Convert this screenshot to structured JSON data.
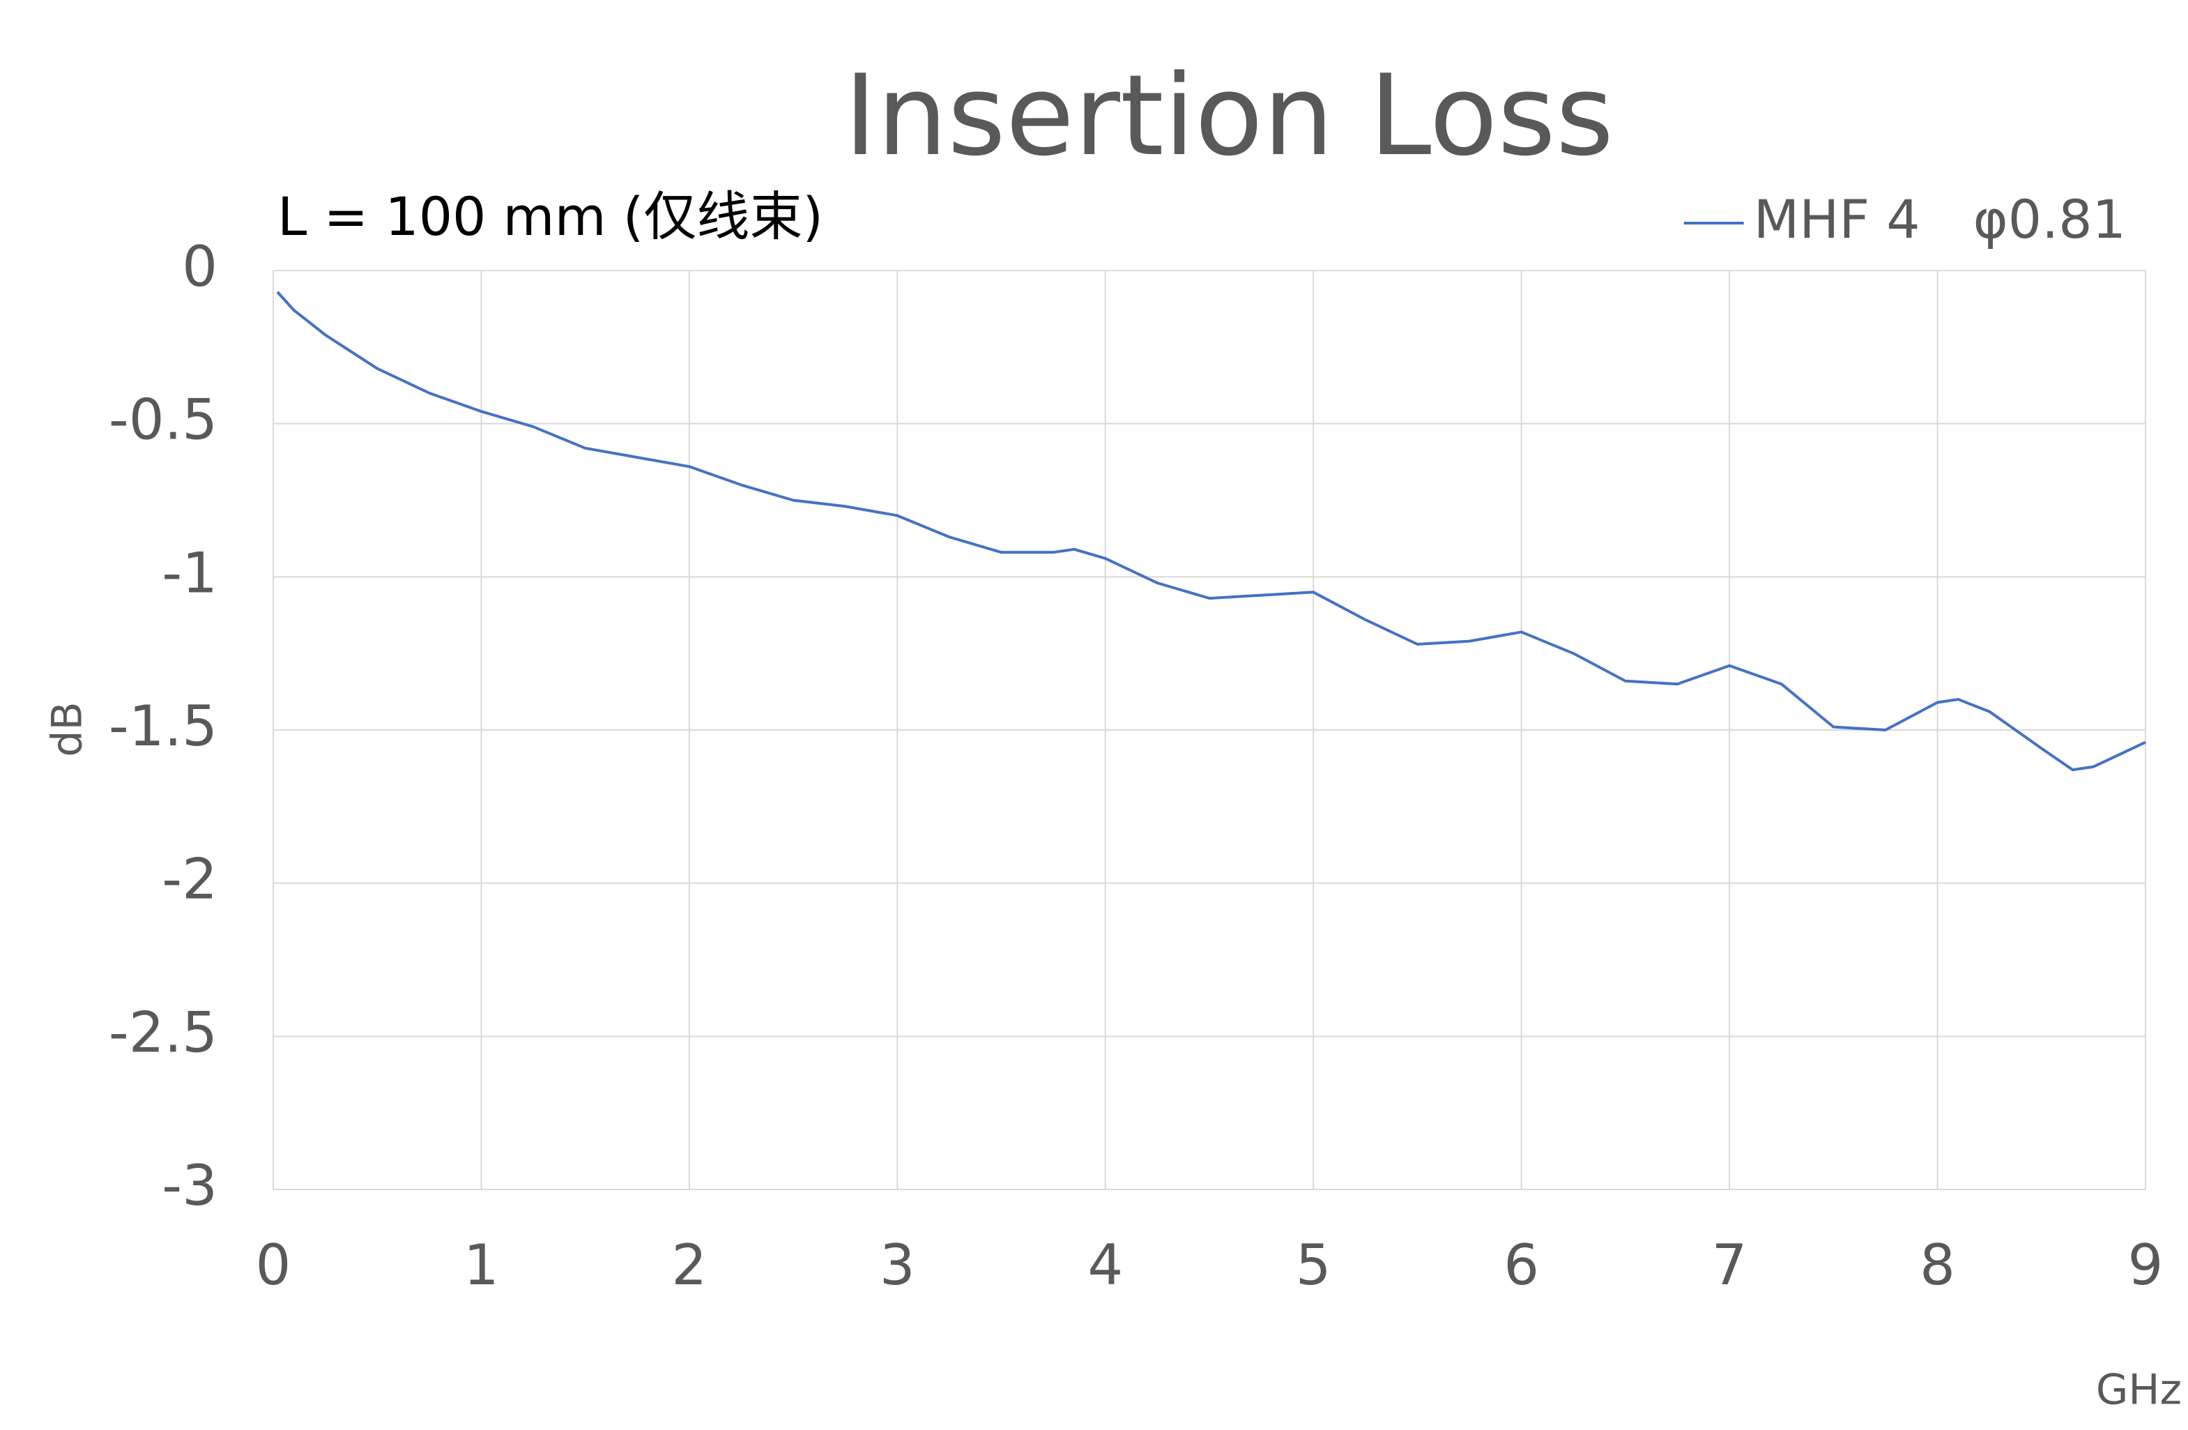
{
  "chart_data": {
    "type": "line",
    "title": "Insertion Loss",
    "subtitle": "L = 100 mm (仅线束)",
    "x_label": "GHz",
    "y_label": "dB",
    "x": [
      0.02,
      0.1,
      0.25,
      0.5,
      0.75,
      1.0,
      1.25,
      1.5,
      1.75,
      2.0,
      2.25,
      2.5,
      2.75,
      3.0,
      3.25,
      3.5,
      3.75,
      3.85,
      4.0,
      4.25,
      4.5,
      4.75,
      5.0,
      5.25,
      5.5,
      5.75,
      6.0,
      6.25,
      6.5,
      6.75,
      7.0,
      7.25,
      7.5,
      7.75,
      8.0,
      8.1,
      8.25,
      8.5,
      8.65,
      8.75,
      9.0
    ],
    "series": [
      {
        "name": "MHF 4　φ0.81",
        "color": "#4472c4",
        "values": [
          -0.07,
          -0.13,
          -0.21,
          -0.32,
          -0.4,
          -0.46,
          -0.51,
          -0.58,
          -0.61,
          -0.64,
          -0.7,
          -0.75,
          -0.77,
          -0.8,
          -0.87,
          -0.92,
          -0.92,
          -0.91,
          -0.94,
          -1.02,
          -1.07,
          -1.06,
          -1.05,
          -1.14,
          -1.22,
          -1.21,
          -1.18,
          -1.25,
          -1.34,
          -1.35,
          -1.29,
          -1.35,
          -1.49,
          -1.5,
          -1.41,
          -1.4,
          -1.44,
          -1.56,
          -1.63,
          -1.62,
          -1.54
        ]
      }
    ],
    "xlim": [
      0,
      9
    ],
    "xticks": [
      0,
      1,
      2,
      3,
      4,
      5,
      6,
      7,
      8,
      9
    ],
    "ylim": [
      -3,
      0
    ],
    "yticks": [
      0,
      -0.5,
      -1,
      -1.5,
      -2,
      -2.5,
      -3
    ],
    "grid": true,
    "legend": "top-right"
  }
}
